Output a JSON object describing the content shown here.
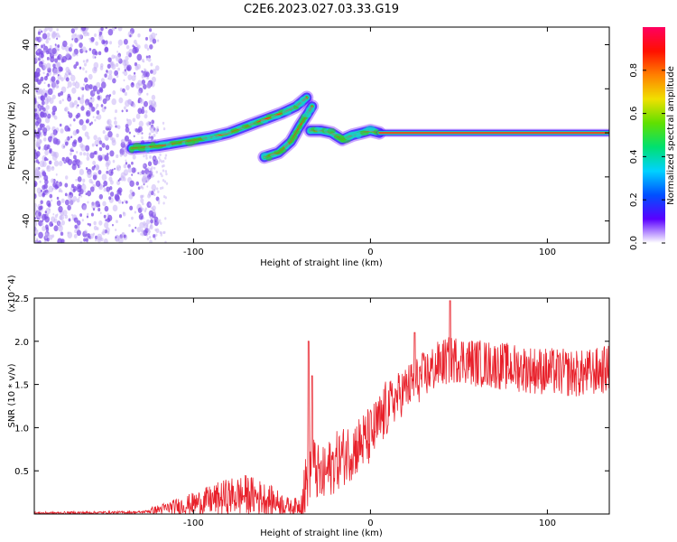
{
  "title": "C2E6.2023.027.03.33.G19",
  "colors": {
    "snr_line": "#e8202a",
    "ridge_core": "#e8202a",
    "ridge_yellow": "#e6e000",
    "ridge_green": "#32c832",
    "ridge_cyan": "#14d2d2",
    "ridge_blue": "#3c28ff",
    "ridge_purple": "#6a00ff",
    "noise_purple": "#8050e8",
    "noise_light": "#c8b4f5"
  },
  "chart_data": [
    {
      "type": "heatmap",
      "name": "spectrogram",
      "xlabel": "Height of straight line (km)",
      "ylabel": "Frequency (Hz)",
      "xlim": [
        -190,
        135
      ],
      "ylim": [
        -50,
        48
      ],
      "xticks": [
        -100,
        0,
        100
      ],
      "xtick_labels": [
        "-100",
        "0",
        "100"
      ],
      "yticks": [
        -40,
        -20,
        0,
        20,
        40
      ],
      "ytick_labels": [
        "-40",
        "-20",
        "0",
        "20",
        "40"
      ],
      "colorbar": {
        "label": "Normalized spectral amplitude",
        "range": [
          0,
          1
        ],
        "ticks": [
          0.0,
          0.2,
          0.4,
          0.6,
          0.8
        ],
        "tick_labels": [
          "0.0",
          "0.2",
          "0.4",
          "0.6",
          "0.8"
        ],
        "stops": [
          "#ffffff",
          "#5a00ff",
          "#0050ff",
          "#00d2ff",
          "#00e070",
          "#60e000",
          "#f0e000",
          "#ff8000",
          "#ff1000",
          "#ff0060"
        ]
      },
      "ridges": [
        {
          "name": "upper-branch",
          "points": [
            [
              -135,
              -7
            ],
            [
              -120,
              -6
            ],
            [
              -105,
              -4
            ],
            [
              -90,
              -2
            ],
            [
              -80,
              0
            ],
            [
              -70,
              3
            ],
            [
              -60,
              6
            ],
            [
              -50,
              9
            ],
            [
              -42,
              12
            ],
            [
              -36,
              16
            ]
          ]
        },
        {
          "name": "lower-branch",
          "points": [
            [
              -60,
              -11
            ],
            [
              -52,
              -9
            ],
            [
              -45,
              -4
            ],
            [
              -40,
              3
            ],
            [
              -36,
              8
            ],
            [
              -33,
              12
            ]
          ]
        },
        {
          "name": "transition",
          "points": [
            [
              -34,
              1
            ],
            [
              -28,
              1
            ],
            [
              -22,
              0
            ],
            [
              -16,
              -3
            ],
            [
              -10,
              -1
            ],
            [
              -5,
              0
            ],
            [
              0,
              1
            ],
            [
              5,
              0
            ]
          ]
        },
        {
          "name": "steady-line",
          "points": [
            [
              5,
              0
            ],
            [
              135,
              0
            ]
          ]
        }
      ],
      "grid": false
    },
    {
      "type": "line",
      "name": "snr",
      "xlabel": "Height of straight line (km)",
      "ylabel": "SNR (10 * v/v)",
      "y_multiplier": "(x10^4)",
      "xlim": [
        -190,
        135
      ],
      "ylim": [
        0,
        2.5
      ],
      "xticks": [
        -100,
        0,
        100
      ],
      "xtick_labels": [
        "-100",
        "0",
        "100"
      ],
      "yticks": [
        0.5,
        1.0,
        1.5,
        2.0,
        2.5
      ],
      "ytick_labels": [
        "0.5",
        "1.0",
        "1.5",
        "2.0",
        "2.5"
      ],
      "envelope": [
        [
          -190,
          0.01
        ],
        [
          -130,
          0.02
        ],
        [
          -120,
          0.05
        ],
        [
          -100,
          0.12
        ],
        [
          -80,
          0.2
        ],
        [
          -70,
          0.22
        ],
        [
          -60,
          0.18
        ],
        [
          -50,
          0.12
        ],
        [
          -45,
          0.08
        ],
        [
          -40,
          0.1
        ],
        [
          -37,
          0.3
        ],
        [
          -33,
          0.6
        ],
        [
          -28,
          0.4
        ],
        [
          -20,
          0.6
        ],
        [
          -10,
          0.75
        ],
        [
          0,
          0.9
        ],
        [
          5,
          1.05
        ],
        [
          10,
          1.25
        ],
        [
          20,
          1.45
        ],
        [
          30,
          1.6
        ],
        [
          40,
          1.75
        ],
        [
          50,
          1.8
        ],
        [
          60,
          1.75
        ],
        [
          80,
          1.7
        ],
        [
          100,
          1.65
        ],
        [
          120,
          1.62
        ],
        [
          135,
          1.68
        ]
      ],
      "spikes": [
        {
          "x": -35,
          "y": 2.0
        },
        {
          "x": -33,
          "y": 1.6
        },
        {
          "x": 45,
          "y": 2.47
        },
        {
          "x": 25,
          "y": 2.1
        }
      ],
      "grid": false
    }
  ]
}
